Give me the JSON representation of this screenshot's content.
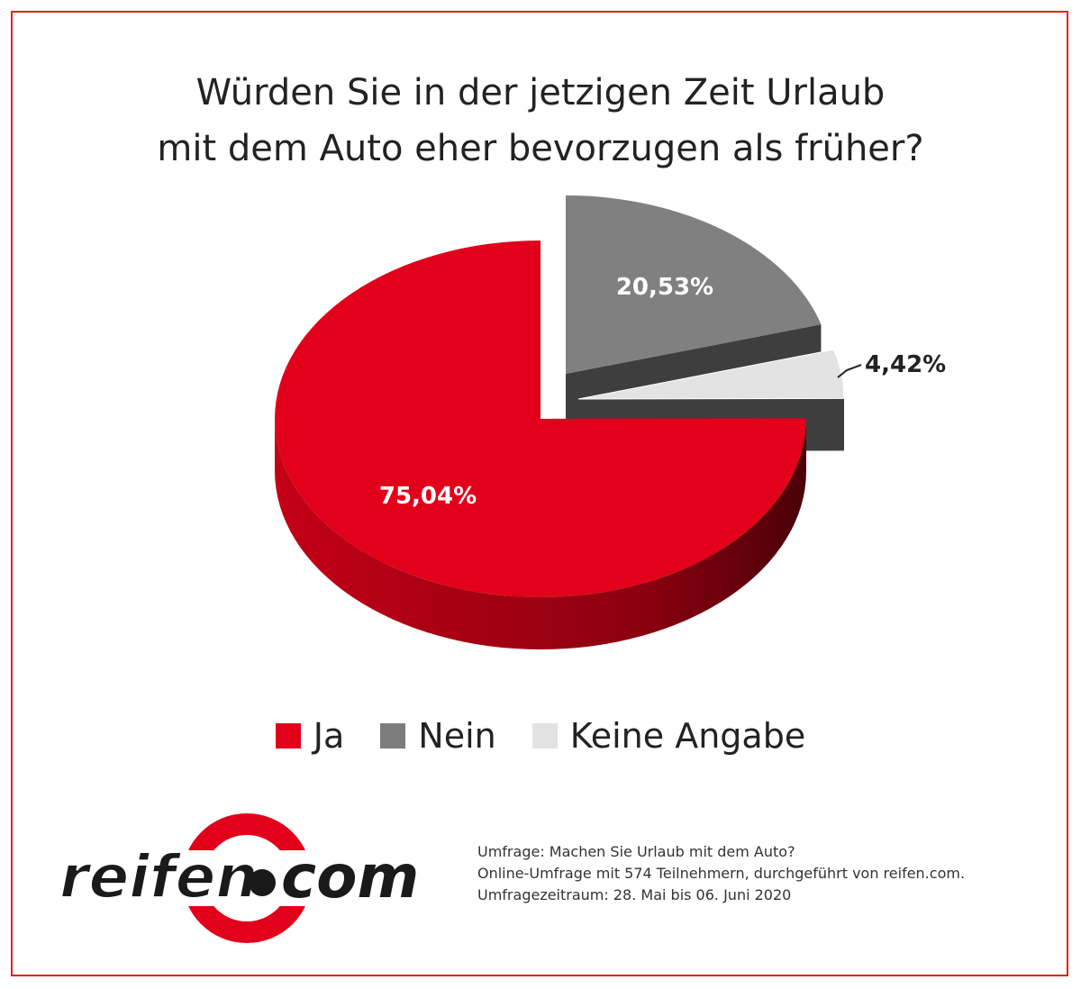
{
  "title": {
    "line1": "Würden Sie in der jetzigen Zeit Urlaub",
    "line2": "mit dem Auto eher bevorzugen als früher?"
  },
  "chart_data": {
    "type": "pie",
    "title": "Würden Sie in der jetzigen Zeit Urlaub mit dem Auto eher bevorzugen als früher?",
    "categories": [
      "Ja",
      "Nein",
      "Keine Angabe"
    ],
    "values": [
      75.04,
      20.53,
      4.42
    ],
    "labels": [
      "75,04%",
      "20,53%",
      "4,42%"
    ],
    "colors": [
      "#e2001a",
      "#808080",
      "#e3e3e3"
    ],
    "legend_position": "bottom"
  },
  "legend": [
    {
      "label": "Ja",
      "color": "#e2001a"
    },
    {
      "label": "Nein",
      "color": "#7d7d7d"
    },
    {
      "label": "Keine Angabe",
      "color": "#e3e3e3"
    }
  ],
  "logo": {
    "left_text": "reifen",
    "right_text": "com"
  },
  "footnote": {
    "line1": "Umfrage: Machen Sie Urlaub mit dem Auto?",
    "line2": "Online-Umfrage mit 574 Teilnehmern, durchgeführt von reifen.com.",
    "line3": "Umfragezeitraum: 28. Mai bis 06. Juni 2020"
  },
  "colors": {
    "frame": "#e2231a",
    "text": "#222222"
  }
}
